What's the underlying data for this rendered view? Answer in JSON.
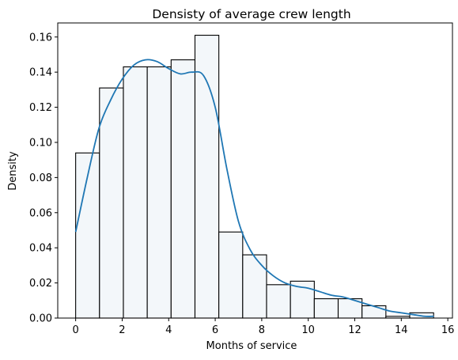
{
  "chart_data": {
    "type": "histogram",
    "title": "Densisty of average crew length",
    "xlabel": "Months of service",
    "ylabel": "Density",
    "xlim": [
      -0.77,
      16.2
    ],
    "ylim": [
      0,
      0.168
    ],
    "xticks": [
      0,
      2,
      4,
      6,
      8,
      10,
      12,
      14,
      16
    ],
    "xtick_labels": [
      "0",
      "2",
      "4",
      "6",
      "8",
      "10",
      "12",
      "14",
      "16"
    ],
    "yticks": [
      0.0,
      0.02,
      0.04,
      0.06,
      0.08,
      0.1,
      0.12,
      0.14,
      0.16
    ],
    "ytick_labels": [
      "0.00",
      "0.02",
      "0.04",
      "0.06",
      "0.08",
      "0.10",
      "0.12",
      "0.14",
      "0.16"
    ],
    "bin_edges": [
      0,
      1.026,
      2.052,
      3.078,
      4.104,
      5.13,
      6.156,
      7.182,
      8.208,
      9.234,
      10.26,
      11.286,
      12.312,
      13.338,
      14.364,
      15.39
    ],
    "values": [
      0.094,
      0.131,
      0.143,
      0.143,
      0.147,
      0.161,
      0.049,
      0.036,
      0.019,
      0.021,
      0.011,
      0.011,
      0.007,
      0.001,
      0.003
    ],
    "bar_fill": "#f3f7fa",
    "bar_edge": "#000000",
    "kde": {
      "name": "",
      "color": "#1f77b4",
      "x": [
        0,
        0.5,
        1,
        1.5,
        2,
        2.5,
        3,
        3.5,
        4,
        4.5,
        5,
        5.5,
        6,
        6.5,
        7,
        7.5,
        8,
        8.5,
        9,
        9.5,
        10,
        10.5,
        11,
        11.5,
        12,
        12.5,
        13,
        13.5,
        14,
        14.5,
        15,
        15.4
      ],
      "y": [
        0.049,
        0.08,
        0.108,
        0.124,
        0.136,
        0.144,
        0.147,
        0.146,
        0.142,
        0.139,
        0.14,
        0.138,
        0.12,
        0.085,
        0.055,
        0.039,
        0.03,
        0.024,
        0.02,
        0.018,
        0.017,
        0.015,
        0.013,
        0.012,
        0.01,
        0.008,
        0.006,
        0.004,
        0.003,
        0.002,
        0.001,
        0.001
      ]
    }
  }
}
